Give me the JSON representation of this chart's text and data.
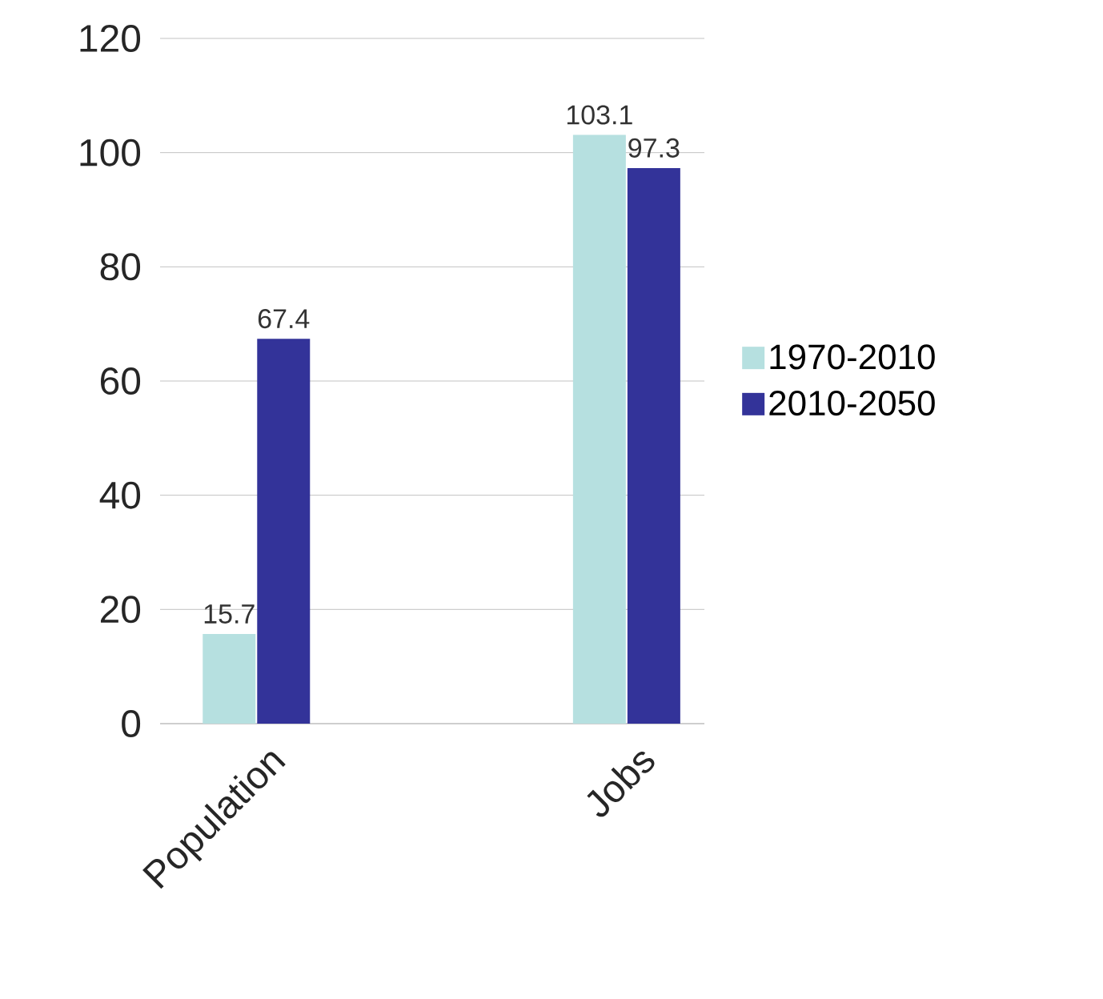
{
  "chart_data": {
    "type": "bar",
    "categories": [
      "Population",
      "Jobs"
    ],
    "series": [
      {
        "name": "1970-2010",
        "color": "#b6e0e0",
        "values": [
          15.7,
          103.1
        ]
      },
      {
        "name": "2010-2050",
        "color": "#333399",
        "values": [
          67.4,
          97.3
        ]
      }
    ],
    "ylim": [
      0,
      120
    ],
    "yticks": [
      0,
      20,
      40,
      60,
      80,
      100,
      120
    ],
    "grid": "y",
    "legend": "right",
    "data_labels": true
  }
}
